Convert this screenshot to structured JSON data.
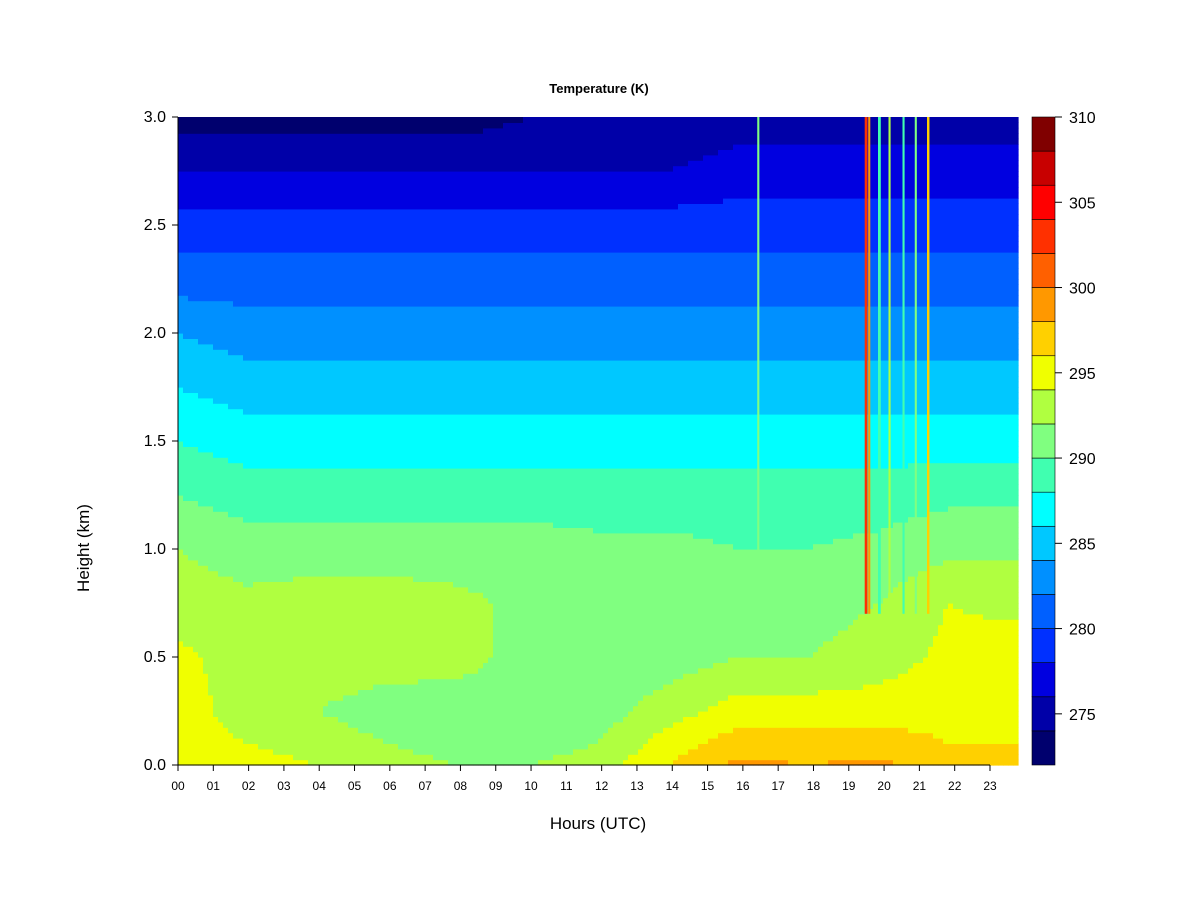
{
  "chart_data": {
    "type": "heatmap",
    "title": "Temperature (K)",
    "xlabel": "Hours (UTC)",
    "ylabel": "Height (km)",
    "xlim": [
      0,
      24
    ],
    "ylim": [
      0.0,
      3.0
    ],
    "x_ticks": [
      "00",
      "01",
      "02",
      "03",
      "04",
      "05",
      "06",
      "07",
      "08",
      "09",
      "10",
      "11",
      "12",
      "13",
      "14",
      "15",
      "16",
      "17",
      "18",
      "19",
      "20",
      "21",
      "22",
      "23"
    ],
    "y_ticks": [
      "0.0",
      "0.5",
      "1.0",
      "1.5",
      "2.0",
      "2.5",
      "3.0"
    ],
    "colorbar": {
      "range": [
        272,
        310
      ],
      "levels": [
        272,
        274,
        276,
        278,
        280,
        282,
        284,
        286,
        288,
        290,
        292,
        294,
        296,
        298,
        300,
        302,
        304,
        306,
        308,
        310
      ],
      "colors": [
        "#00006e",
        "#0000a8",
        "#0000e0",
        "#0030ff",
        "#0060ff",
        "#0090ff",
        "#00c8ff",
        "#00ffff",
        "#40ffb0",
        "#80ff80",
        "#b0ff40",
        "#f0ff00",
        "#ffd000",
        "#ff9800",
        "#ff6000",
        "#ff3000",
        "#ff0000",
        "#c80000",
        "#800000"
      ],
      "tick_values": [
        275,
        280,
        285,
        290,
        295,
        300,
        305,
        310
      ],
      "tick_labels": [
        "275",
        "280",
        "285",
        "290",
        "295",
        "300",
        "305",
        "310"
      ]
    },
    "heights_km": [
      0.0,
      0.1,
      0.25,
      0.5,
      0.75,
      1.0,
      1.25,
      1.5,
      1.75,
      2.0,
      2.25,
      2.5,
      2.75,
      3.0
    ],
    "temperature_profiles": [
      {
        "hour": 0,
        "values": [
          296,
          295,
          295,
          294.5,
          293,
          292,
          290,
          288,
          286,
          284,
          281,
          279,
          276,
          273
        ]
      },
      {
        "hour": 2,
        "values": [
          295,
          294,
          293,
          293,
          292.5,
          291,
          289,
          287,
          285,
          283,
          281,
          279,
          276,
          273
        ]
      },
      {
        "hour": 4,
        "values": [
          294,
          293,
          292,
          293,
          293,
          291,
          289,
          287,
          285,
          283,
          281,
          279,
          276,
          273
        ]
      },
      {
        "hour": 6,
        "values": [
          293,
          292,
          291,
          293,
          293,
          291,
          289,
          287,
          285,
          283,
          281,
          279,
          276,
          273
        ]
      },
      {
        "hour": 8,
        "values": [
          292,
          291,
          290.5,
          293,
          292.5,
          291,
          289,
          287,
          285,
          283,
          281,
          279,
          276,
          273
        ]
      },
      {
        "hour": 10,
        "values": [
          292,
          291,
          290.5,
          291,
          291.5,
          291,
          289,
          287,
          285,
          283,
          281,
          279,
          276,
          274
        ]
      },
      {
        "hour": 12,
        "values": [
          293,
          292,
          291,
          291,
          291,
          290.5,
          289,
          287,
          285,
          283,
          281,
          279,
          276,
          274
        ]
      },
      {
        "hour": 14,
        "values": [
          296,
          295,
          293,
          291,
          291,
          290.5,
          289,
          287,
          285,
          283,
          281,
          279,
          276,
          274
        ]
      },
      {
        "hour": 16,
        "values": [
          298.5,
          297,
          295,
          292,
          291,
          290,
          289,
          287,
          285,
          283,
          281,
          279,
          277,
          275
        ]
      },
      {
        "hour": 18,
        "values": [
          298,
          297,
          295,
          292,
          291,
          290,
          289,
          287,
          285,
          283,
          281,
          279,
          277,
          275
        ]
      },
      {
        "hour": 20,
        "values": [
          298.5,
          297,
          295,
          293,
          292,
          290.5,
          289,
          287,
          285,
          283,
          281,
          279,
          277,
          275
        ]
      },
      {
        "hour": 22,
        "values": [
          297,
          296,
          295.5,
          294.5,
          294,
          291.5,
          289.5,
          287,
          285,
          283,
          281,
          279,
          277,
          275
        ]
      },
      {
        "hour": 24,
        "values": [
          297,
          296,
          295.5,
          295,
          293.5,
          291.5,
          289.5,
          287,
          285,
          283,
          281,
          279,
          277,
          275
        ]
      }
    ],
    "anomaly_columns": [
      {
        "hour": 16.55,
        "width_h": 0.06,
        "value": 290
      },
      {
        "hour": 19.62,
        "width_h": 0.08,
        "value": 303
      },
      {
        "hour": 19.72,
        "width_h": 0.06,
        "value": 299
      },
      {
        "hour": 20.0,
        "width_h": 0.08,
        "value": 289
      },
      {
        "hour": 20.3,
        "width_h": 0.06,
        "value": 293
      },
      {
        "hour": 20.7,
        "width_h": 0.06,
        "value": 288
      },
      {
        "hour": 21.05,
        "width_h": 0.06,
        "value": 290
      },
      {
        "hour": 21.4,
        "width_h": 0.07,
        "value": 296
      }
    ],
    "grid": false,
    "legend": "colorbar-right"
  }
}
